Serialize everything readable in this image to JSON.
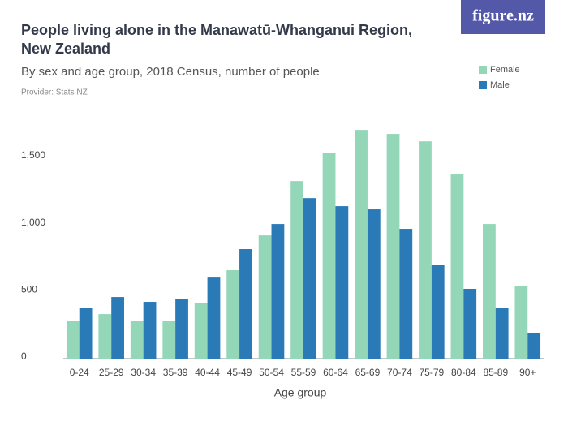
{
  "logo": "figure.nz",
  "chart_data": {
    "type": "bar",
    "title": "People living alone in the Manawatū-Whanganui Region,",
    "title_line2": "New Zealand",
    "subtitle": "By sex and age group, 2018 Census, number of people",
    "provider": "Provider: Stats NZ",
    "x_label": "Age group",
    "categories": [
      "0-24",
      "25-29",
      "30-34",
      "35-39",
      "40-44",
      "45-49",
      "50-54",
      "55-59",
      "60-64",
      "65-69",
      "70-74",
      "75-79",
      "80-84",
      "85-89",
      "90+"
    ],
    "series": [
      {
        "name": "Female",
        "color": "#93d6b8",
        "values": [
          284,
          332,
          284,
          278,
          411,
          659,
          918,
          1323,
          1535,
          1704,
          1674,
          1619,
          1372,
          1003,
          538
        ]
      },
      {
        "name": "Male",
        "color": "#2a7ab8",
        "values": [
          375,
          459,
          423,
          447,
          610,
          816,
          1003,
          1196,
          1136,
          1112,
          967,
          701,
          520,
          375,
          193
        ]
      }
    ],
    "ylim": [
      0,
      1735
    ],
    "yticks": [
      0,
      500,
      {
        "value": 1000,
        "label": "1,000"
      },
      {
        "value": 1500,
        "label": "1,500"
      }
    ],
    "legend": "top-right",
    "grid": false
  }
}
